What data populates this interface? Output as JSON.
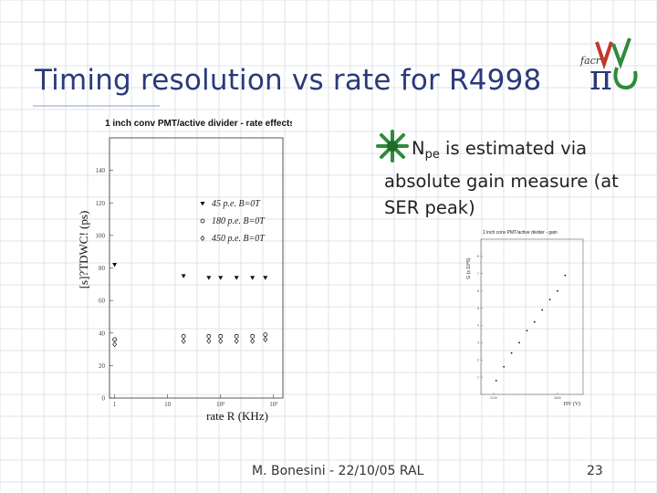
{
  "slide": {
    "title": "Timing resolution vs rate  for R4998",
    "bullet": {
      "lead": "N",
      "sub": "pe",
      "rest": " is estimated via absolute gain measure (at SER peak)"
    },
    "footer_center": "M. Bonesini - 22/10/05 RAL",
    "footer_page": "23",
    "logo": {
      "letters": "π",
      "small_text": "facr",
      "icon": "facr-pi-logo-icon"
    },
    "colors": {
      "title": "#2a3a7a",
      "grid": "#dfe3ea",
      "bullet_icon": "#2e8b3a"
    }
  },
  "chart_data": [
    {
      "type": "scatter",
      "title": "1 inch conv PMT/active divider - rate effects",
      "xlabel": "rate R (KHz)",
      "ylabel": "[s]?TDWC! (ps)",
      "x_scale": "log",
      "xlim": [
        0.8,
        1500
      ],
      "ylim": [
        0,
        160
      ],
      "x_ticks": [
        {
          "v": 1,
          "label": "1"
        },
        {
          "v": 10,
          "label": "10"
        },
        {
          "v": 100,
          "label": "10²"
        },
        {
          "v": 1000,
          "label": "10³"
        }
      ],
      "y_ticks": [
        {
          "v": 0,
          "label": "0"
        },
        {
          "v": 20,
          "label": "20"
        },
        {
          "v": 40,
          "label": "40"
        },
        {
          "v": 60,
          "label": "60"
        },
        {
          "v": 80,
          "label": "80"
        },
        {
          "v": 100,
          "label": "100"
        },
        {
          "v": 120,
          "label": "120"
        },
        {
          "v": 140,
          "label": "140"
        }
      ],
      "series": [
        {
          "name": "45 p.e. B=0T",
          "marker": "triangle",
          "x": [
            1,
            20,
            60,
            100,
            200,
            400,
            700
          ],
          "y": [
            82,
            75,
            74,
            74,
            74,
            74,
            74
          ]
        },
        {
          "name": "180 p.e. B=0T",
          "marker": "circle",
          "x": [
            1,
            20,
            60,
            100,
            200,
            400,
            700
          ],
          "y": [
            36,
            38,
            38,
            38,
            38,
            38,
            39
          ]
        },
        {
          "name": "450 p.e. B=0T",
          "marker": "diamond",
          "x": [
            1,
            20,
            60,
            100,
            200,
            400,
            700
          ],
          "y": [
            33,
            35,
            35,
            35,
            35,
            35,
            36
          ]
        }
      ]
    },
    {
      "type": "scatter",
      "title": "1 inch conv PMT/active divider - gain",
      "xlabel": "HV (V)",
      "ylabel": "G (x 10^6)",
      "xlim": [
        2000,
        2800
      ],
      "ylim": [
        0,
        9
      ],
      "x_ticks": [
        {
          "v": 2100,
          "label": "2100"
        },
        {
          "v": 2600,
          "label": "2600"
        }
      ],
      "y_ticks": [
        {
          "v": 1,
          "label": "1"
        },
        {
          "v": 2,
          "label": "2"
        },
        {
          "v": 3,
          "label": "3"
        },
        {
          "v": 4,
          "label": "4"
        },
        {
          "v": 5,
          "label": "5"
        },
        {
          "v": 6,
          "label": "6"
        },
        {
          "v": 7,
          "label": "7"
        },
        {
          "v": 8,
          "label": "8"
        }
      ],
      "series": [
        {
          "marker": "dot",
          "x": [
            2120,
            2180,
            2240,
            2300,
            2360,
            2420,
            2480,
            2540,
            2600,
            2660
          ],
          "y": [
            0.8,
            1.6,
            2.4,
            3.0,
            3.7,
            4.2,
            4.9,
            5.5,
            6.0,
            6.9
          ]
        }
      ]
    }
  ]
}
